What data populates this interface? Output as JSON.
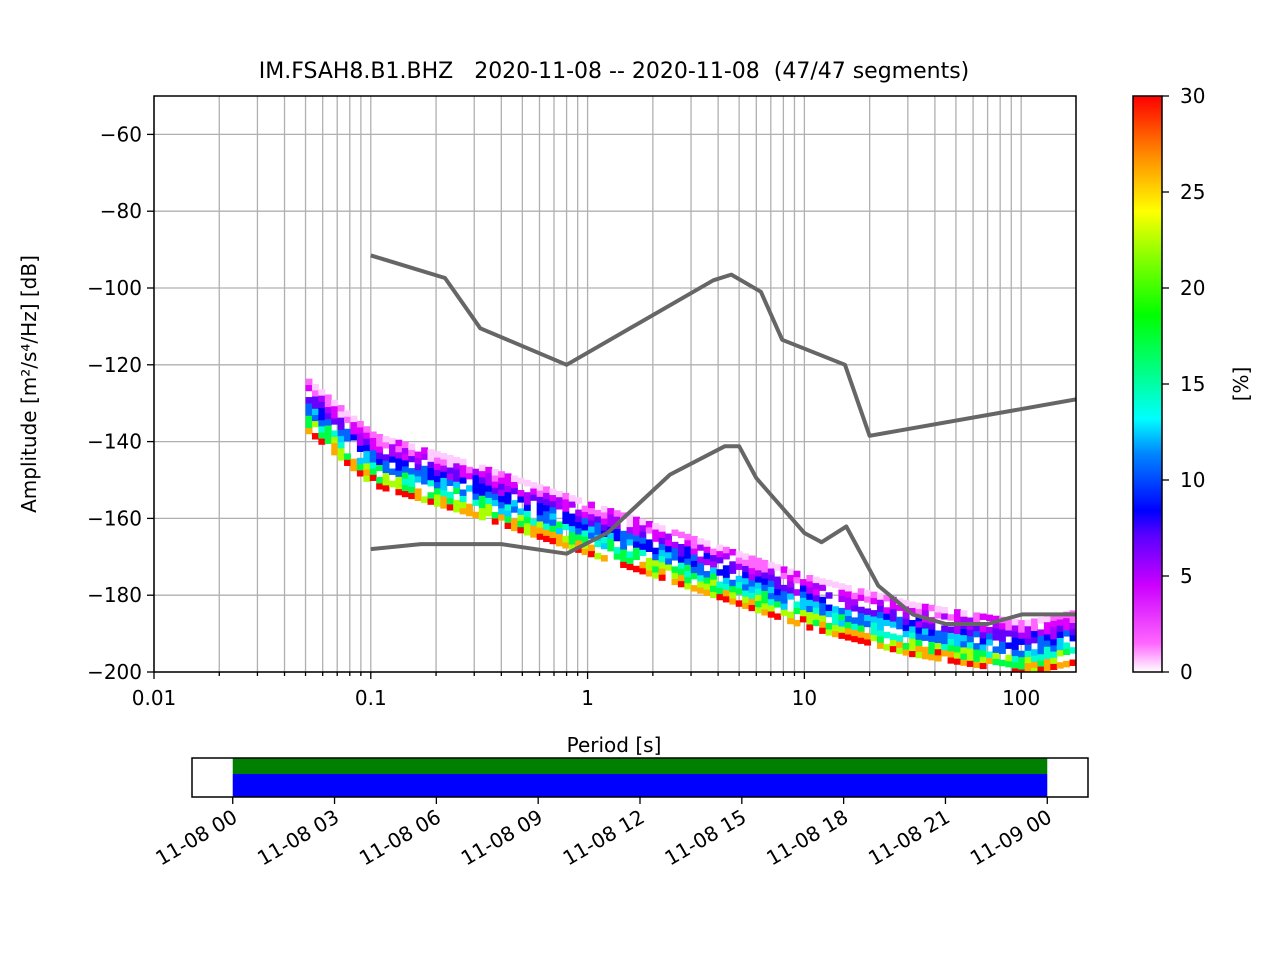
{
  "chart_data": [
    {
      "type": "heatmap",
      "title": "IM.FSAH8.B1.BHZ   2020-11-08 -- 2020-11-08  (47/47 segments)",
      "xlabel": "Period [s]",
      "ylabel": "Amplitude [m²/s⁴/Hz] [dB]",
      "xscale": "log",
      "xlim": [
        0.01,
        179
      ],
      "ylim": [
        -200,
        -50
      ],
      "xticks": [
        {
          "value": 0.01,
          "label": "0.01"
        },
        {
          "value": 0.1,
          "label": "0.1"
        },
        {
          "value": 1,
          "label": "1"
        },
        {
          "value": 10,
          "label": "10"
        },
        {
          "value": 100,
          "label": "100"
        }
      ],
      "yticks": [
        {
          "value": -60,
          "label": "−60"
        },
        {
          "value": -80,
          "label": "−80"
        },
        {
          "value": -100,
          "label": "−100"
        },
        {
          "value": -120,
          "label": "−120"
        },
        {
          "value": -140,
          "label": "−140"
        },
        {
          "value": -160,
          "label": "−160"
        },
        {
          "value": -180,
          "label": "−180"
        },
        {
          "value": -200,
          "label": "−200"
        }
      ],
      "grid": true,
      "colorbar": {
        "label": "[%]",
        "range": [
          0,
          30
        ],
        "ticks": [
          {
            "value": 0,
            "label": "0"
          },
          {
            "value": 5,
            "label": "5"
          },
          {
            "value": 10,
            "label": "10"
          },
          {
            "value": 15,
            "label": "15"
          },
          {
            "value": 20,
            "label": "20"
          },
          {
            "value": 25,
            "label": "25"
          },
          {
            "value": 30,
            "label": "30"
          }
        ]
      },
      "noise_models": [
        {
          "points": [
            [
              0.1,
              -91.5
            ],
            [
              0.22,
              -97.4
            ],
            [
              0.32,
              -110.5
            ],
            [
              0.8,
              -120
            ],
            [
              3.8,
              -98
            ],
            [
              4.6,
              -96.5
            ],
            [
              6.3,
              -101
            ],
            [
              7.9,
              -113.5
            ],
            [
              15.4,
              -120
            ],
            [
              20,
              -138.5
            ],
            [
              179,
              -129
            ]
          ]
        },
        {
          "points": [
            [
              0.1,
              -168
            ],
            [
              0.17,
              -166.7
            ],
            [
              0.4,
              -166.7
            ],
            [
              0.8,
              -169.2
            ],
            [
              1.24,
              -163.7
            ],
            [
              2.4,
              -148.6
            ],
            [
              4.3,
              -141.2
            ],
            [
              5.0,
              -141.2
            ],
            [
              6.0,
              -149.5
            ],
            [
              10,
              -163.8
            ],
            [
              12,
              -166.2
            ],
            [
              15.6,
              -162.1
            ],
            [
              21.9,
              -177.5
            ],
            [
              31.6,
              -185
            ],
            [
              45,
              -187.5
            ],
            [
              70,
              -187.5
            ],
            [
              101,
              -185
            ],
            [
              179,
              -185
            ]
          ]
        }
      ],
      "density_band": {
        "period_range": [
          0.05,
          179
        ],
        "comment_free": true,
        "centerline": [
          [
            0.05,
            -131
          ],
          [
            0.1,
            -145
          ],
          [
            0.3,
            -153
          ],
          [
            1,
            -163
          ],
          [
            3,
            -172
          ],
          [
            10,
            -182
          ],
          [
            30,
            -189
          ],
          [
            100,
            -194
          ],
          [
            179,
            -191
          ]
        ],
        "spread_db": 14
      }
    },
    {
      "type": "bar",
      "x_ticks": [
        {
          "hours": 0,
          "label": "11-08 00"
        },
        {
          "hours": 3,
          "label": "11-08 03"
        },
        {
          "hours": 6,
          "label": "11-08 06"
        },
        {
          "hours": 9,
          "label": "11-08 09"
        },
        {
          "hours": 12,
          "label": "11-08 12"
        },
        {
          "hours": 15,
          "label": "11-08 15"
        },
        {
          "hours": 18,
          "label": "11-08 18"
        },
        {
          "hours": 21,
          "label": "11-08 21"
        },
        {
          "hours": 24,
          "label": "11-09 00"
        }
      ],
      "xlim_hours": [
        -1.2,
        25.2
      ],
      "coverage": [
        {
          "color": "#008000",
          "start_hours": 0,
          "end_hours": 24
        },
        {
          "color": "#0000ff",
          "start_hours": 0,
          "end_hours": 24
        }
      ]
    }
  ],
  "colors": {
    "noise_model": "#666666",
    "grid": "#b0b0b0"
  }
}
